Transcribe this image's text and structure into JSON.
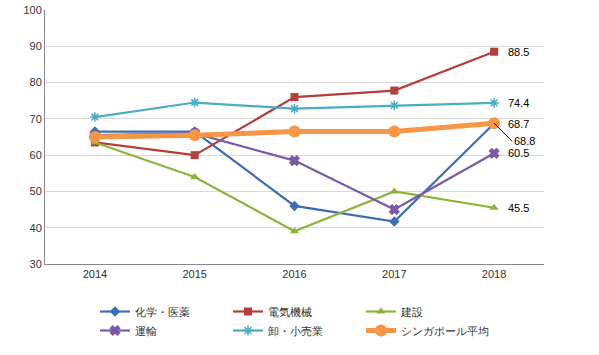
{
  "chart_data": {
    "type": "line",
    "categories": [
      "2014",
      "2015",
      "2016",
      "2017",
      "2018"
    ],
    "series": [
      {
        "name": "化学・医薬",
        "color": "#3c6eb4",
        "marker": "diamond",
        "values": [
          66.5,
          66.5,
          46,
          41.7,
          68.7
        ],
        "value_labels": [
          null,
          null,
          null,
          null,
          "68.7"
        ]
      },
      {
        "name": "電気機械",
        "color": "#b33f3b",
        "marker": "square",
        "values": [
          63.5,
          60,
          76,
          77.8,
          88.5
        ],
        "value_labels": [
          null,
          null,
          null,
          null,
          "88.5"
        ]
      },
      {
        "name": "建設",
        "color": "#8db33f",
        "marker": "triangle-up",
        "values": [
          63.5,
          54,
          39,
          50,
          45.5
        ],
        "value_labels": [
          null,
          null,
          null,
          null,
          "45.5"
        ]
      },
      {
        "name": "運輸",
        "color": "#7b5aa6",
        "marker": "x",
        "values": [
          65.5,
          66,
          58.5,
          45,
          60.5
        ],
        "value_labels": [
          null,
          null,
          null,
          null,
          "60.5"
        ]
      },
      {
        "name": "卸・小売業",
        "color": "#4bacc6",
        "marker": "asterisk",
        "values": [
          70.5,
          74.5,
          72.8,
          73.7,
          74.4
        ],
        "value_labels": [
          null,
          null,
          null,
          null,
          "74.4"
        ]
      },
      {
        "name": "シンガポール平均",
        "color": "#f79646",
        "marker": "circle",
        "line_style": "thick",
        "values": [
          65,
          65.5,
          66.5,
          66.5,
          68.8
        ],
        "value_labels": [
          null,
          null,
          null,
          null,
          "68.8"
        ]
      }
    ],
    "ylim": [
      30,
      100
    ],
    "yticks": [
      30,
      40,
      50,
      60,
      70,
      80,
      90,
      100
    ],
    "grid": true,
    "legend": "bottom"
  }
}
